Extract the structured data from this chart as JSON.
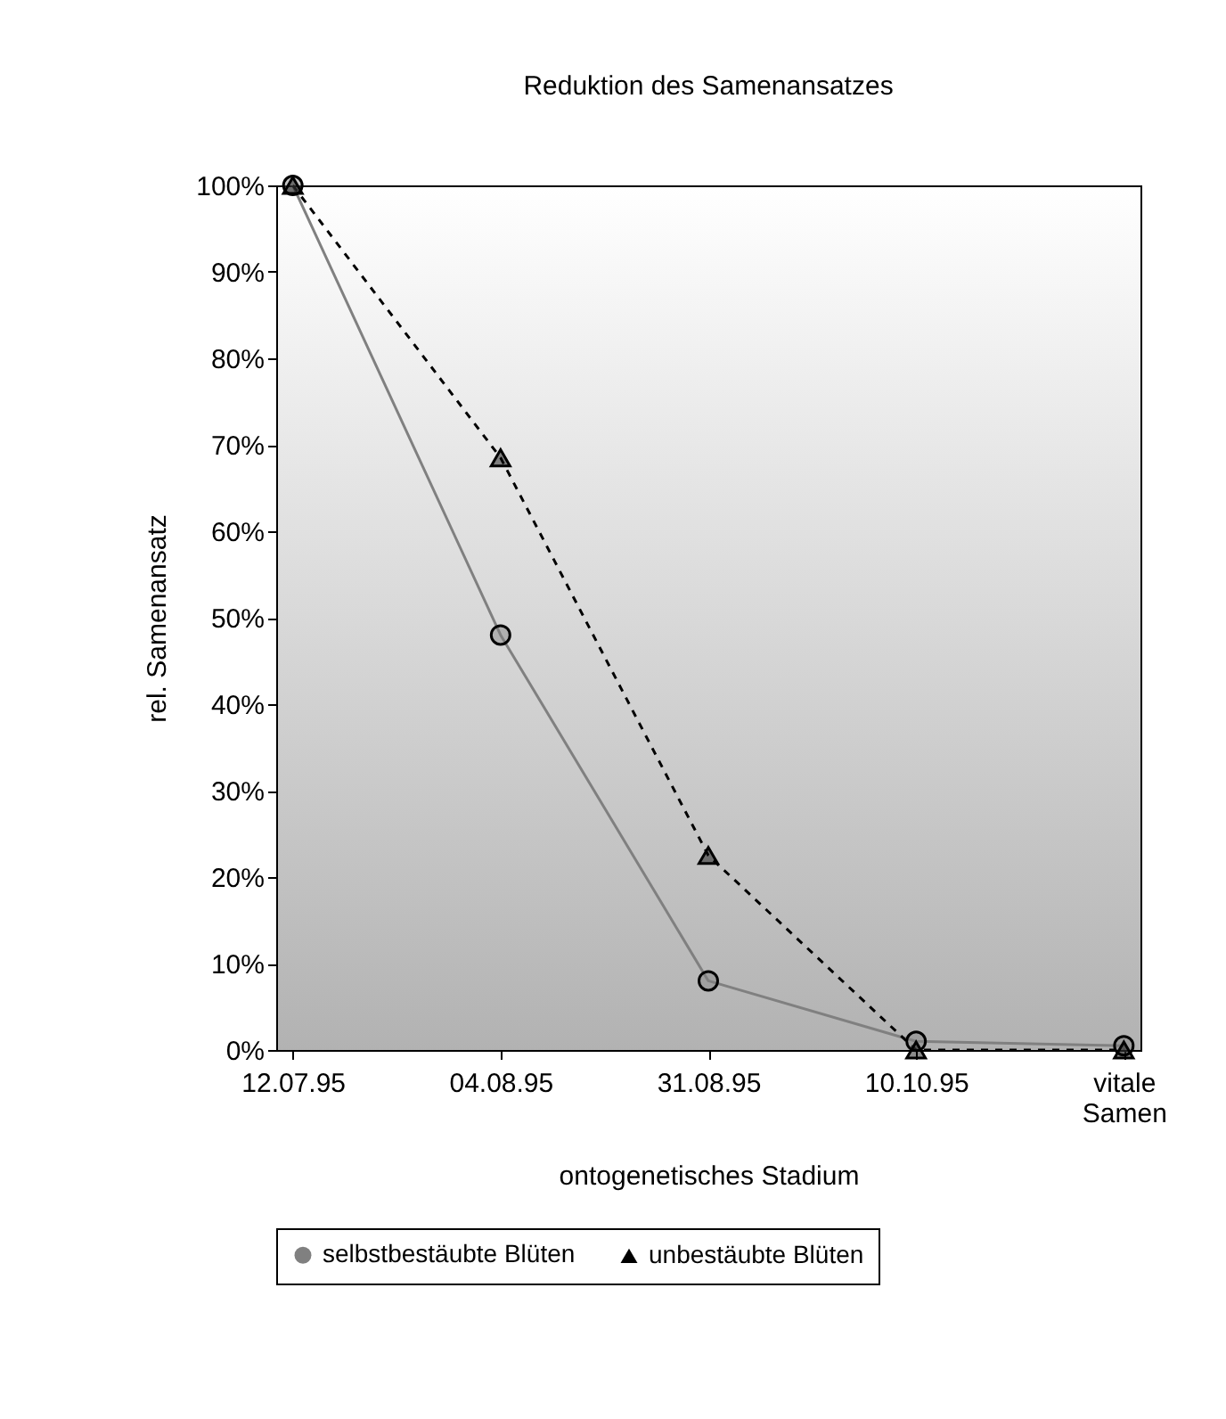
{
  "chart_data": {
    "type": "line",
    "title": "Reduktion des Samenansatzes",
    "xlabel": "ontogenetisches Stadium",
    "ylabel": "rel. Samenansatz",
    "categories": [
      "12.07.95",
      "04.08.95",
      "31.08.95",
      "10.10.95",
      "vitale Samen"
    ],
    "series": [
      {
        "name": "selbstbestäubte Blüten",
        "color": "#808080",
        "marker": "circle",
        "line_style": "solid",
        "values": [
          100,
          48,
          8,
          1,
          0.5
        ]
      },
      {
        "name": "unbestäubte Blüten",
        "color": "#000000",
        "marker": "triangle",
        "line_style": "dashed",
        "values": [
          100,
          68.5,
          22.5,
          0,
          0
        ]
      }
    ],
    "ylim": [
      0,
      100
    ],
    "yticks": [
      {
        "value": 0,
        "label": "0%"
      },
      {
        "value": 10,
        "label": "10%"
      },
      {
        "value": 20,
        "label": "20%"
      },
      {
        "value": 30,
        "label": "30%"
      },
      {
        "value": 40,
        "label": "40%"
      },
      {
        "value": 50,
        "label": "50%"
      },
      {
        "value": 60,
        "label": "60%"
      },
      {
        "value": 70,
        "label": "70%"
      },
      {
        "value": 80,
        "label": "80%"
      },
      {
        "value": 90,
        "label": "90%"
      },
      {
        "value": 100,
        "label": "100%"
      }
    ],
    "grid": false,
    "legend": "bottom"
  }
}
